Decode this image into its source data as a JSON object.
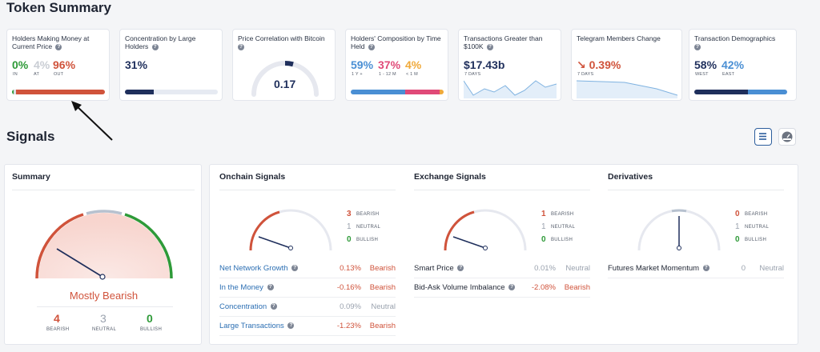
{
  "token_summary": {
    "title": "Token Summary",
    "cards": {
      "holders_money": {
        "title": "Holders Making Money at Current Price",
        "in": "0%",
        "at": "4%",
        "out": "96%",
        "in_label": "IN",
        "at_label": "AT",
        "out_label": "OUT",
        "in_frac": 0.0,
        "at_frac": 0.04,
        "out_frac": 0.96
      },
      "concentration": {
        "title": "Concentration by Large Holders",
        "value": "31%",
        "frac": 0.31
      },
      "price_corr": {
        "title": "Price Correlation with Bitcoin",
        "value": "0.17",
        "frac": 0.17
      },
      "composition": {
        "title": "Holders' Composition by Time Held",
        "v1": "59%",
        "v2": "37%",
        "v3": "4%",
        "l1": "1 Y +",
        "l2": "1 - 12 M",
        "l3": "< 1 M",
        "f1": 0.59,
        "f2": 0.37,
        "f3": 0.04
      },
      "transactions": {
        "title": "Transactions Greater than $100K",
        "value": "$17.43b",
        "period": "7 DAYS"
      },
      "telegram": {
        "title": "Telegram Members Change",
        "value": "0.39%",
        "period": "7 DAYS"
      },
      "demographics": {
        "title": "Transaction Demographics",
        "west": "58%",
        "east": "42%",
        "west_label": "WEST",
        "east_label": "EAST",
        "west_frac": 0.58,
        "east_frac": 0.42
      }
    }
  },
  "signals": {
    "title": "Signals",
    "summary": {
      "title": "Summary",
      "verdict": "Mostly Bearish",
      "bearish": "4",
      "neutral": "3",
      "bullish": "0",
      "bearish_label": "BEARISH",
      "neutral_label": "NEUTRAL",
      "bullish_label": "BULLISH"
    },
    "onchain": {
      "title": "Onchain Signals",
      "bearish": "3",
      "neutral": "1",
      "bullish": "0",
      "rows": [
        {
          "label": "Net Network Growth",
          "pct": "0.13%",
          "signal": "Bearish"
        },
        {
          "label": "In the Money",
          "pct": "-0.16%",
          "signal": "Bearish"
        },
        {
          "label": "Concentration",
          "pct": "0.09%",
          "signal": "Neutral"
        },
        {
          "label": "Large Transactions",
          "pct": "-1.23%",
          "signal": "Bearish"
        }
      ]
    },
    "exchange": {
      "title": "Exchange Signals",
      "bearish": "1",
      "neutral": "1",
      "bullish": "0",
      "rows": [
        {
          "label": "Smart Price",
          "pct": "0.01%",
          "signal": "Neutral"
        },
        {
          "label": "Bid-Ask Volume Imbalance",
          "pct": "-2.08%",
          "signal": "Bearish"
        }
      ]
    },
    "derivatives": {
      "title": "Derivatives",
      "bearish": "0",
      "neutral": "1",
      "bullish": "0",
      "rows": [
        {
          "label": "Futures Market Momentum",
          "pct": "0",
          "signal": "Neutral"
        }
      ]
    },
    "labels": {
      "bearish": "BEARISH",
      "neutral": "NEUTRAL",
      "bullish": "BULLISH"
    },
    "help_glyph": "?"
  },
  "icons": {
    "list_view": "list-icon",
    "gauge_view": "gauge-icon"
  },
  "colors": {
    "bearish": "#d0533b",
    "neutral": "#9aa2ae",
    "bullish": "#2e9a38",
    "navy": "#1f2f5c",
    "blue": "#4a8fd4",
    "pink": "#e04a78",
    "orange": "#f0a93a"
  }
}
